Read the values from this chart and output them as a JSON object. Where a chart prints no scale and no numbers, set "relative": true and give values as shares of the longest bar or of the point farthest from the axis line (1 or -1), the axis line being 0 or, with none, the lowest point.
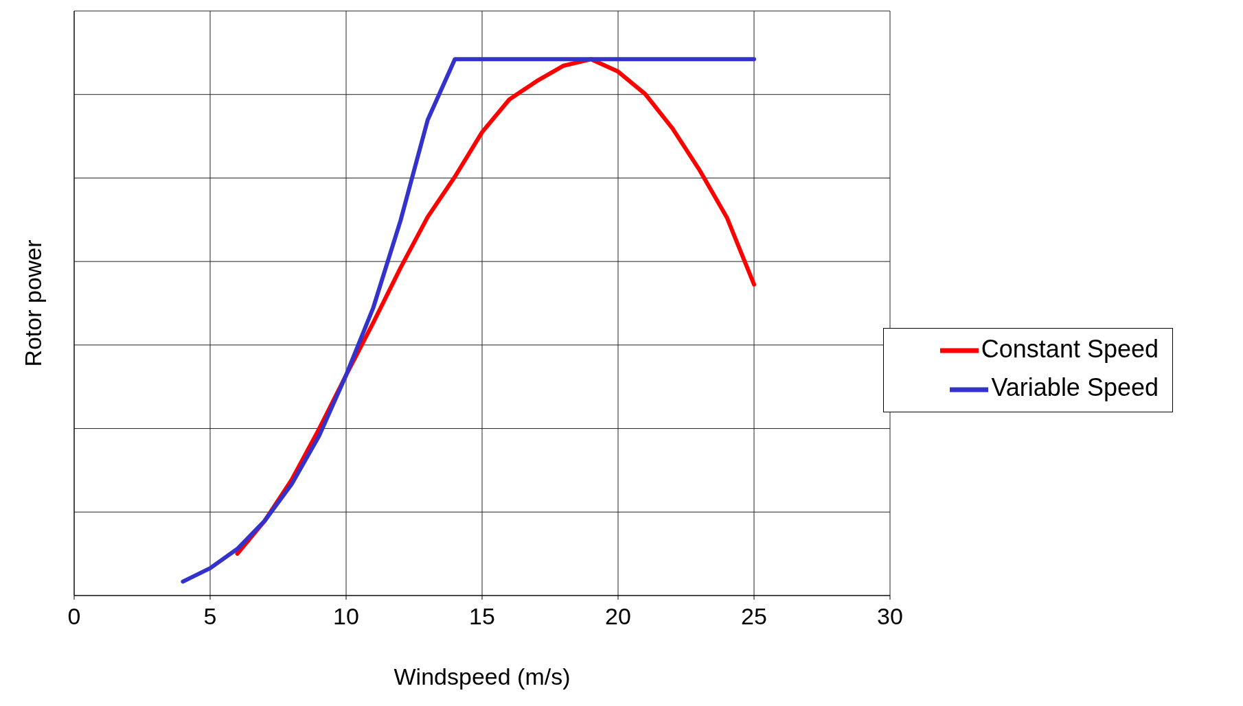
{
  "chart_data": {
    "type": "line",
    "xlabel": "Windspeed (m/s)",
    "ylabel": "Rotor power",
    "relative": true,
    "xlim": [
      0,
      30
    ],
    "xticks": [
      0,
      5,
      10,
      15,
      20,
      25,
      30
    ],
    "grid": true,
    "legend": "right",
    "series": [
      {
        "name": "Constant Speed",
        "color": "#ff0000",
        "x": [
          6,
          7,
          8,
          9,
          10,
          11,
          12,
          13,
          14,
          15,
          16,
          17,
          18,
          19,
          20,
          21,
          22,
          23,
          24,
          25
        ],
        "values": [
          0.078,
          0.139,
          0.216,
          0.31,
          0.411,
          0.509,
          0.611,
          0.706,
          0.781,
          0.864,
          0.925,
          0.959,
          0.988,
          1,
          0.977,
          0.935,
          0.871,
          0.793,
          0.705,
          0.58
        ]
      },
      {
        "name": "Variable Speed",
        "color": "#3333cc",
        "x": [
          4,
          5,
          6,
          7,
          8,
          9,
          10,
          11,
          12,
          13,
          14,
          15,
          16,
          17,
          18,
          19,
          20,
          21,
          22,
          23,
          24,
          25
        ],
        "values": [
          0.026,
          0.051,
          0.087,
          0.139,
          0.208,
          0.297,
          0.411,
          0.537,
          0.699,
          0.887,
          1,
          1,
          1,
          1,
          1,
          1,
          1,
          1,
          1,
          1,
          1,
          1
        ]
      }
    ]
  }
}
